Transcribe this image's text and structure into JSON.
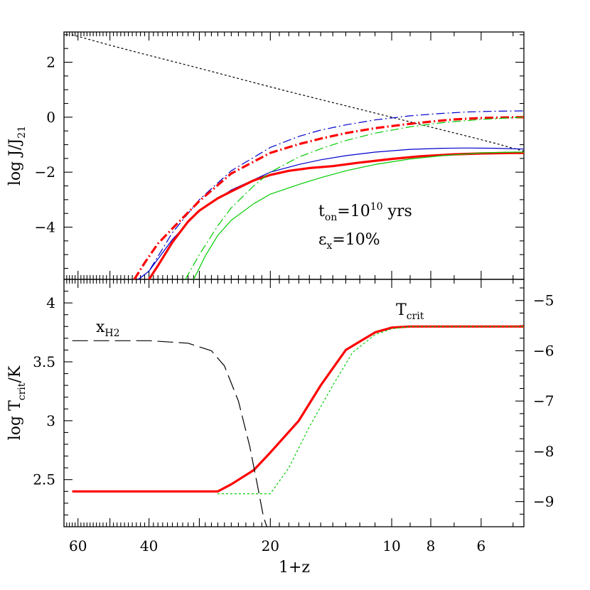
{
  "chart_data": [
    {
      "type": "line",
      "panel": "top",
      "xlabel": "1+z",
      "xscale": "log",
      "xlim": [
        65,
        4.7
      ],
      "ylabel": {
        "main": "log  J/J",
        "sub": "21"
      },
      "ylim": [
        -5.9,
        3.1
      ],
      "yticks": [
        2,
        0,
        -2,
        -4
      ],
      "annotations": {
        "ton": {
          "t": "t",
          "sub": "on",
          "mid": "=10",
          "sup": "10",
          "tail": " yrs"
        },
        "eps": {
          "t": "ε",
          "sub": "x",
          "tail": "=10%"
        }
      },
      "series": [
        {
          "color": "#000000",
          "style": "dotted",
          "width": 1.2,
          "x": [
            62,
            50,
            40,
            30,
            22,
            18,
            15,
            12,
            10,
            8,
            6.5,
            5.5,
            4.7
          ],
          "y": [
            3.0,
            2.62,
            2.25,
            1.78,
            1.26,
            0.93,
            0.64,
            0.29,
            0.0,
            -0.36,
            -0.69,
            -0.96,
            -1.24
          ]
        },
        {
          "color": "#0000cc",
          "style": "dashdot",
          "width": 1.2,
          "x": [
            42.5,
            40,
            35,
            30,
            25,
            20,
            17,
            15,
            13,
            11,
            9,
            7.5,
            6.5,
            5.5,
            4.7
          ],
          "y": [
            -5.9,
            -5.6,
            -4.2,
            -3.0,
            -1.95,
            -1.1,
            -0.7,
            -0.47,
            -0.28,
            -0.1,
            0.05,
            0.14,
            0.19,
            0.22,
            0.23
          ]
        },
        {
          "color": "#0000cc",
          "style": "solid",
          "width": 1.2,
          "x": [
            42.5,
            40,
            35,
            30,
            25,
            20,
            17,
            15,
            13,
            11,
            9,
            7.5,
            6.5,
            5.5,
            4.7
          ],
          "y": [
            -5.9,
            -5.6,
            -4.45,
            -3.4,
            -2.65,
            -2.0,
            -1.72,
            -1.55,
            -1.4,
            -1.27,
            -1.17,
            -1.13,
            -1.12,
            -1.13,
            -1.16
          ]
        },
        {
          "color": "#ff0000",
          "style": "dashdot",
          "width": 3.2,
          "x": [
            43.5,
            41,
            38,
            35,
            30,
            25,
            20,
            17,
            15,
            13,
            11,
            9,
            8,
            7,
            6,
            5,
            4.7
          ],
          "y": [
            -5.9,
            -5.3,
            -4.6,
            -4.05,
            -3.05,
            -2.05,
            -1.3,
            -0.98,
            -0.78,
            -0.58,
            -0.4,
            -0.24,
            -0.16,
            -0.08,
            -0.03,
            0.0,
            0.0
          ]
        },
        {
          "color": "#ff0000",
          "style": "solid",
          "width": 3.2,
          "x": [
            40,
            38,
            35,
            32,
            30,
            27,
            25,
            22,
            20,
            18,
            16,
            14,
            12,
            10,
            8.5,
            7,
            6,
            5,
            4.7
          ],
          "y": [
            -5.9,
            -5.4,
            -4.55,
            -3.8,
            -3.4,
            -2.95,
            -2.7,
            -2.3,
            -2.1,
            -1.95,
            -1.85,
            -1.78,
            -1.65,
            -1.52,
            -1.42,
            -1.35,
            -1.32,
            -1.3,
            -1.3
          ]
        },
        {
          "color": "#00cc00",
          "style": "dashdot",
          "width": 1.2,
          "x": [
            32.5,
            30,
            27,
            25,
            22,
            20,
            17,
            15,
            13,
            11,
            9,
            7.5,
            6,
            5,
            4.7
          ],
          "y": [
            -5.9,
            -5.0,
            -3.95,
            -3.3,
            -2.5,
            -2.0,
            -1.45,
            -1.15,
            -0.85,
            -0.58,
            -0.35,
            -0.2,
            -0.08,
            -0.02,
            0.0
          ]
        },
        {
          "color": "#00cc00",
          "style": "solid",
          "width": 1.2,
          "x": [
            31,
            29,
            27,
            25,
            22,
            20,
            17,
            15,
            13,
            11,
            9,
            7.5,
            6,
            5,
            4.7
          ],
          "y": [
            -5.9,
            -5.05,
            -4.3,
            -3.75,
            -3.15,
            -2.8,
            -2.45,
            -2.2,
            -1.95,
            -1.72,
            -1.52,
            -1.4,
            -1.3,
            -1.27,
            -1.27
          ]
        }
      ]
    },
    {
      "type": "line",
      "panel": "bottom",
      "xlabel": "1+z",
      "xscale": "log",
      "xlim": [
        65,
        4.7
      ],
      "xticks": [
        60,
        40,
        20,
        10,
        8,
        6
      ],
      "ylabel": {
        "main": "log  T",
        "sub": "crit",
        "tail": "/K"
      },
      "ylim": [
        2.1,
        4.2
      ],
      "yticks": [
        4,
        3.5,
        3,
        2.5
      ],
      "y2lim": [
        -9.5,
        -4.58
      ],
      "y2ticks": [
        -5,
        -6,
        -7,
        -8,
        -9
      ],
      "annotations": {
        "xh2": {
          "t": "x",
          "sub": "H2"
        },
        "tcrit": {
          "t": "T",
          "sub": "crit"
        }
      },
      "series": [
        {
          "color": "#ff0000",
          "style": "solid",
          "width": 3.2,
          "axis": "left",
          "x": [
            62,
            40,
            30,
            27,
            25,
            22,
            20,
            17,
            15,
            13,
            11,
            10,
            9,
            8,
            6,
            4.7
          ],
          "y": [
            2.4,
            2.4,
            2.4,
            2.4,
            2.46,
            2.58,
            2.73,
            3.0,
            3.3,
            3.6,
            3.75,
            3.79,
            3.8,
            3.8,
            3.8,
            3.8
          ]
        },
        {
          "color": "#00cc00",
          "style": "dotted",
          "width": 1.2,
          "axis": "left",
          "x": [
            27,
            25,
            22,
            20,
            18,
            16,
            14,
            12.5,
            11,
            10,
            9,
            6,
            4.7
          ],
          "y": [
            2.38,
            2.38,
            2.38,
            2.38,
            2.6,
            2.95,
            3.3,
            3.58,
            3.73,
            3.78,
            3.8,
            3.8,
            3.8
          ]
        },
        {
          "color": "#000000",
          "style": "longdash",
          "width": 1.2,
          "axis": "right",
          "x": [
            62,
            50,
            40,
            32,
            28,
            26,
            24,
            22.5,
            21.5,
            20.8,
            20.4
          ],
          "y": [
            -5.8,
            -5.8,
            -5.8,
            -5.85,
            -6.0,
            -6.3,
            -7.0,
            -7.9,
            -8.7,
            -9.3,
            -9.5
          ]
        }
      ]
    }
  ]
}
